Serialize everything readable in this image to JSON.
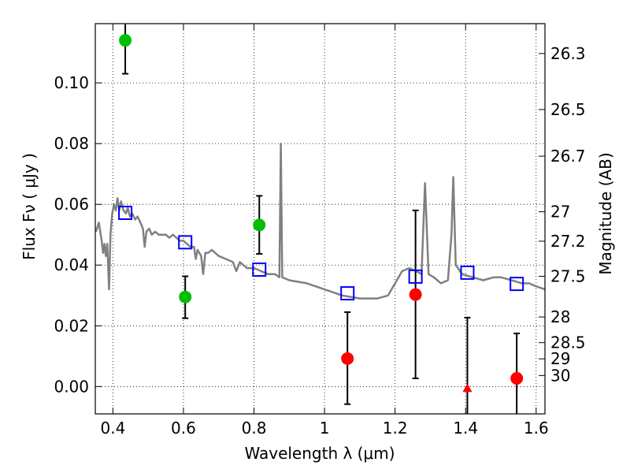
{
  "chart_data": {
    "type": "scatter",
    "xlabel": "Wavelength  λ (μm)",
    "ylabel": "Flux  Fν  ( μJy )",
    "y2label": "Magnitude (AB)",
    "xlim": [
      0.35,
      1.625
    ],
    "ylim": [
      -0.009,
      0.1195
    ],
    "grid": true,
    "x_ticks": [
      {
        "value": 0.4,
        "label": "0.4"
      },
      {
        "value": 0.6,
        "label": "0.6"
      },
      {
        "value": 0.8,
        "label": "0.8"
      },
      {
        "value": 1.0,
        "label": "1"
      },
      {
        "value": 1.2,
        "label": "1.2"
      },
      {
        "value": 1.4,
        "label": "1.4"
      },
      {
        "value": 1.6,
        "label": "1.6"
      }
    ],
    "y_ticks": [
      {
        "value": 0.0,
        "label": "0.00"
      },
      {
        "value": 0.02,
        "label": "0.02"
      },
      {
        "value": 0.04,
        "label": "0.04"
      },
      {
        "value": 0.06,
        "label": "0.06"
      },
      {
        "value": 0.08,
        "label": "0.08"
      },
      {
        "value": 0.1,
        "label": "0.10"
      }
    ],
    "mag_ticks": [
      {
        "value": 26.3,
        "label": "26.3"
      },
      {
        "value": 26.5,
        "label": "26.5"
      },
      {
        "value": 26.7,
        "label": "26.7"
      },
      {
        "value": 27.0,
        "label": "27"
      },
      {
        "value": 27.2,
        "label": "27.2"
      },
      {
        "value": 27.5,
        "label": "27.5"
      },
      {
        "value": 28.0,
        "label": "28"
      },
      {
        "value": 28.5,
        "label": "28.5"
      },
      {
        "value": 29.0,
        "label": "29"
      },
      {
        "value": 30.0,
        "label": "30"
      }
    ],
    "series": [
      {
        "marker": "line",
        "color": "#808080",
        "points": [
          [
            0.352,
            0.051
          ],
          [
            0.36,
            0.054
          ],
          [
            0.368,
            0.048
          ],
          [
            0.372,
            0.044
          ],
          [
            0.376,
            0.047
          ],
          [
            0.38,
            0.043
          ],
          [
            0.384,
            0.047
          ],
          [
            0.389,
            0.032
          ],
          [
            0.393,
            0.05
          ],
          [
            0.398,
            0.057
          ],
          [
            0.403,
            0.06
          ],
          [
            0.408,
            0.058
          ],
          [
            0.413,
            0.062
          ],
          [
            0.418,
            0.058
          ],
          [
            0.423,
            0.061
          ],
          [
            0.43,
            0.058
          ],
          [
            0.437,
            0.057
          ],
          [
            0.442,
            0.059
          ],
          [
            0.448,
            0.056
          ],
          [
            0.455,
            0.057
          ],
          [
            0.463,
            0.055
          ],
          [
            0.47,
            0.056
          ],
          [
            0.478,
            0.054
          ],
          [
            0.485,
            0.052
          ],
          [
            0.49,
            0.046
          ],
          [
            0.495,
            0.051
          ],
          [
            0.503,
            0.052
          ],
          [
            0.51,
            0.05
          ],
          [
            0.52,
            0.051
          ],
          [
            0.53,
            0.05
          ],
          [
            0.54,
            0.05
          ],
          [
            0.55,
            0.05
          ],
          [
            0.56,
            0.049
          ],
          [
            0.57,
            0.05
          ],
          [
            0.58,
            0.049
          ],
          [
            0.59,
            0.048
          ],
          [
            0.6,
            0.048
          ],
          [
            0.61,
            0.047
          ],
          [
            0.62,
            0.046
          ],
          [
            0.63,
            0.046
          ],
          [
            0.635,
            0.042
          ],
          [
            0.64,
            0.045
          ],
          [
            0.65,
            0.043
          ],
          [
            0.656,
            0.037
          ],
          [
            0.662,
            0.044
          ],
          [
            0.67,
            0.044
          ],
          [
            0.68,
            0.045
          ],
          [
            0.69,
            0.044
          ],
          [
            0.7,
            0.043
          ],
          [
            0.72,
            0.042
          ],
          [
            0.74,
            0.041
          ],
          [
            0.75,
            0.038
          ],
          [
            0.76,
            0.041
          ],
          [
            0.78,
            0.039
          ],
          [
            0.8,
            0.039
          ],
          [
            0.82,
            0.038
          ],
          [
            0.84,
            0.037
          ],
          [
            0.86,
            0.037
          ],
          [
            0.872,
            0.036
          ],
          [
            0.876,
            0.08
          ],
          [
            0.88,
            0.036
          ],
          [
            0.9,
            0.035
          ],
          [
            0.95,
            0.034
          ],
          [
            1.0,
            0.032
          ],
          [
            1.05,
            0.03
          ],
          [
            1.1,
            0.029
          ],
          [
            1.15,
            0.029
          ],
          [
            1.18,
            0.03
          ],
          [
            1.2,
            0.034
          ],
          [
            1.22,
            0.038
          ],
          [
            1.24,
            0.039
          ],
          [
            1.26,
            0.038
          ],
          [
            1.275,
            0.037
          ],
          [
            1.285,
            0.067
          ],
          [
            1.295,
            0.037
          ],
          [
            1.31,
            0.036
          ],
          [
            1.33,
            0.034
          ],
          [
            1.35,
            0.035
          ],
          [
            1.36,
            0.05
          ],
          [
            1.365,
            0.069
          ],
          [
            1.372,
            0.04
          ],
          [
            1.39,
            0.037
          ],
          [
            1.42,
            0.036
          ],
          [
            1.45,
            0.035
          ],
          [
            1.48,
            0.036
          ],
          [
            1.5,
            0.036
          ],
          [
            1.53,
            0.035
          ],
          [
            1.56,
            0.034
          ],
          [
            1.58,
            0.034
          ],
          [
            1.6,
            0.033
          ],
          [
            1.625,
            0.032
          ]
        ]
      },
      {
        "marker": "circle",
        "color": "#00bf00",
        "points": [
          {
            "x": 0.435,
            "y": 0.114,
            "ylo": 0.103,
            "yhi": 0.1195
          },
          {
            "x": 0.605,
            "y": 0.0295,
            "ylo": 0.0225,
            "yhi": 0.0363
          },
          {
            "x": 0.815,
            "y": 0.0532,
            "ylo": 0.0437,
            "yhi": 0.0628
          }
        ]
      },
      {
        "marker": "circle",
        "color": "#ff0000",
        "points": [
          {
            "x": 1.065,
            "y": 0.0092,
            "ylo": -0.0058,
            "yhi": 0.0245
          },
          {
            "x": 1.258,
            "y": 0.0303,
            "ylo": 0.0027,
            "yhi": 0.058
          },
          {
            "x": 1.545,
            "y": 0.0027,
            "ylo": -0.009,
            "yhi": 0.0175
          }
        ]
      },
      {
        "marker": "triangle",
        "color": "#ff0000",
        "points": [
          {
            "x": 1.405,
            "y": -0.0005,
            "ylo": -0.009,
            "yhi": 0.0227
          }
        ]
      },
      {
        "marker": "square",
        "color": "#0000ff",
        "points": [
          {
            "x": 0.435,
            "y": 0.0572
          },
          {
            "x": 0.605,
            "y": 0.0475
          },
          {
            "x": 0.815,
            "y": 0.0385
          },
          {
            "x": 1.065,
            "y": 0.0307
          },
          {
            "x": 1.258,
            "y": 0.0362
          },
          {
            "x": 1.405,
            "y": 0.0375
          },
          {
            "x": 1.545,
            "y": 0.0338
          }
        ]
      }
    ]
  }
}
